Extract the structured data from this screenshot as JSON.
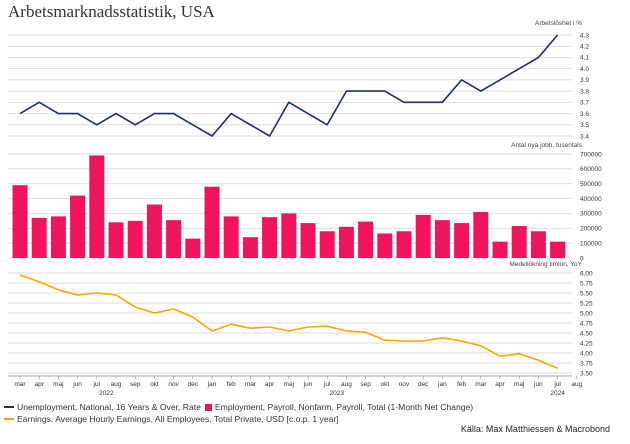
{
  "title": "Arbetsmarknadsstatistik, USA",
  "source": "Källa: Max Matthiessen & Macrobond",
  "legend": {
    "unemployment": "Unemployment, National, 16 Years & Over, Rate",
    "payroll": "Employment, Payroll, Nonfarm, Payroll, Total (1-Month Net Change)",
    "earnings": "Earnings, Average Hourly Earnings, All Employees, Total Private, USD [c.o.p. 1 year]"
  },
  "chart_data": [
    {
      "type": "line",
      "panel": "unemployment",
      "ylabel": "Arbetslöshet i %",
      "ylim": [
        3.4,
        4.3
      ],
      "ticks": [
        "4.3",
        "4.2",
        "4.1",
        "4.0",
        "3.9",
        "3.8",
        "3.7",
        "3.6",
        "3.5",
        "3.4"
      ],
      "color": "#1f2f6e",
      "values": [
        3.6,
        3.7,
        3.6,
        3.6,
        3.5,
        3.6,
        3.5,
        3.6,
        3.6,
        3.5,
        3.4,
        3.6,
        3.5,
        3.4,
        3.7,
        3.6,
        3.5,
        3.8,
        3.8,
        3.8,
        3.7,
        3.7,
        3.7,
        3.9,
        3.8,
        3.9,
        4.0,
        4.1,
        4.3
      ]
    },
    {
      "type": "bar",
      "panel": "payroll",
      "ylabel": "Antal nya jobb, tusentals",
      "ylim": [
        0,
        700000
      ],
      "ticks": [
        "700000",
        "600000",
        "500000",
        "400000",
        "300000",
        "200000",
        "100000",
        "0"
      ],
      "color": "#f0145c",
      "values": [
        490000,
        270000,
        280000,
        420000,
        690000,
        240000,
        250000,
        360000,
        255000,
        130000,
        480000,
        280000,
        140000,
        275000,
        300000,
        235000,
        180000,
        210000,
        245000,
        165000,
        180000,
        290000,
        255000,
        235000,
        310000,
        110000,
        215000,
        180000,
        110000
      ]
    },
    {
      "type": "line",
      "panel": "earnings",
      "ylabel": "Medellökning timlön, YoY",
      "ylim": [
        3.5,
        6.0
      ],
      "ticks": [
        "6.00",
        "5.75",
        "5.50",
        "5.25",
        "5.00",
        "4.75",
        "4.50",
        "4.25",
        "4.00",
        "3.75",
        "3.50"
      ],
      "color": "#f5a800",
      "values": [
        5.95,
        5.78,
        5.58,
        5.45,
        5.5,
        5.45,
        5.15,
        5.0,
        5.1,
        4.9,
        4.55,
        4.72,
        4.62,
        4.65,
        4.55,
        4.65,
        4.67,
        4.55,
        4.52,
        4.32,
        4.3,
        4.3,
        4.38,
        4.3,
        4.18,
        3.92,
        3.98,
        3.82,
        3.62
      ]
    }
  ],
  "x_axis": {
    "months": [
      "mar",
      "apr",
      "maj",
      "jun",
      "jul",
      "aug",
      "sep",
      "okt",
      "nov",
      "dec",
      "jan",
      "feb",
      "mar",
      "apr",
      "maj",
      "jun",
      "jul",
      "aug",
      "sep",
      "okt",
      "nov",
      "dec",
      "jan",
      "feb",
      "mar",
      "apr",
      "maj",
      "jun",
      "jul",
      "aug"
    ],
    "years": [
      {
        "label": "2022",
        "month_index": 4.5
      },
      {
        "label": "2023",
        "month_index": 16.5
      },
      {
        "label": "2024",
        "month_index": 28
      }
    ]
  }
}
